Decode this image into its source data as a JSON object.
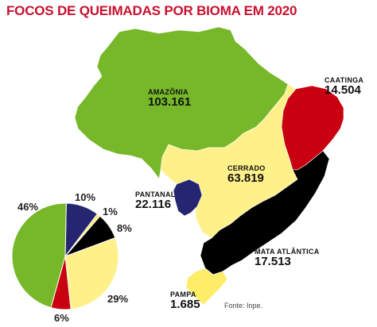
{
  "title": "FOCOS DE QUEIMADAS POR BIOMA EM 2020",
  "source": "Fonte: Inpe.",
  "colors": {
    "amazonia": "#76b82a",
    "cerrado": "#fff08a",
    "caatinga": "#c8000f",
    "mata_atlantica": "#000000",
    "pantanal": "#262670",
    "pampa": "#ffed6a",
    "title": "#c8102e"
  },
  "biomes": {
    "amazonia": {
      "name": "AMAZÔNIA",
      "value": "103.161"
    },
    "cerrado": {
      "name": "CERRADO",
      "value": "63.819"
    },
    "caatinga": {
      "name": "CAATINGA",
      "value": "14.504"
    },
    "pantanal": {
      "name": "PANTANAL",
      "value": "22.116"
    },
    "mata_atlantica": {
      "name": "MATA ATLÂNTICA",
      "value": "17.513"
    },
    "pampa": {
      "name": "PAMPA",
      "value": "1.685"
    }
  },
  "chart_data": {
    "type": "pie",
    "slices": [
      {
        "biome": "Pantanal",
        "label": "10%",
        "value": 10,
        "color": "#262670"
      },
      {
        "biome": "Pampa",
        "label": "1%",
        "value": 1,
        "color": "#ffed6a"
      },
      {
        "biome": "Mata Atlântica",
        "label": "8%",
        "value": 8,
        "color": "#000000"
      },
      {
        "biome": "Cerrado",
        "label": "29%",
        "value": 29,
        "color": "#fff08a"
      },
      {
        "biome": "Caatinga",
        "label": "6%",
        "value": 6,
        "color": "#c8000f"
      },
      {
        "biome": "Amazônia",
        "label": "46%",
        "value": 46,
        "color": "#76b82a"
      }
    ]
  }
}
